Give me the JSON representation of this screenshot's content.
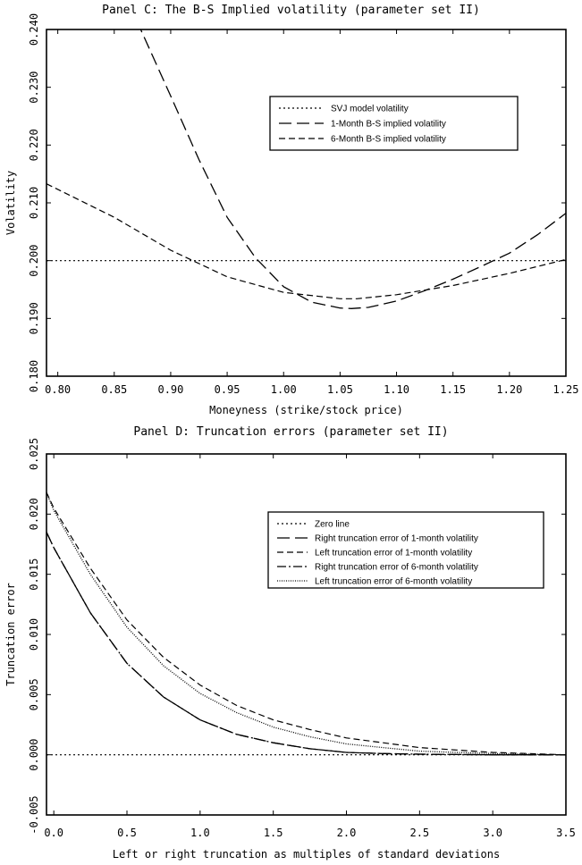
{
  "chart_data": [
    {
      "type": "line",
      "title": "Panel C: The B-S Implied volatility (parameter set II)",
      "xlabel": "Moneyness (strike/stock price)",
      "ylabel": "Volatility",
      "xlim": [
        0.79,
        1.25
      ],
      "ylim": [
        0.18,
        0.24
      ],
      "xticks": [
        0.8,
        0.85,
        0.9,
        0.95,
        1.0,
        1.05,
        1.1,
        1.15,
        1.2,
        1.25
      ],
      "xtick_labels": [
        "0.80",
        "0.85",
        "0.90",
        "0.95",
        "1.00",
        "1.05",
        "1.10",
        "1.15",
        "1.20",
        "1.25"
      ],
      "yticks": [
        0.18,
        0.19,
        0.2,
        0.21,
        0.22,
        0.23,
        0.24
      ],
      "ytick_labels": [
        "0.180",
        "0.190",
        "0.200",
        "0.210",
        "0.220",
        "0.230",
        "0.240"
      ],
      "legend_position": "top-right",
      "series": [
        {
          "name": "SVJ model volatility",
          "dash": "2,3",
          "width": 1.2,
          "x": [
            0.79,
            1.25
          ],
          "y": [
            0.2,
            0.2
          ]
        },
        {
          "name": "1-Month B-S implied volatility",
          "dash": "14,6",
          "width": 1.3,
          "x": [
            0.87,
            0.9,
            0.925,
            0.95,
            0.975,
            1.0,
            1.025,
            1.05,
            1.06,
            1.075,
            1.1,
            1.125,
            1.15,
            1.175,
            1.2,
            1.225,
            1.25
          ],
          "y": [
            0.2415,
            0.2285,
            0.2175,
            0.2075,
            0.2005,
            0.1955,
            0.1928,
            0.1918,
            0.1917,
            0.1919,
            0.193,
            0.1948,
            0.1968,
            0.199,
            0.2013,
            0.2045,
            0.2082
          ]
        },
        {
          "name": "6-Month B-S implied volatility",
          "dash": "7,4",
          "width": 1.2,
          "x": [
            0.79,
            0.85,
            0.9,
            0.95,
            1.0,
            1.05,
            1.065,
            1.1,
            1.15,
            1.2,
            1.25
          ],
          "y": [
            0.2133,
            0.2075,
            0.2018,
            0.1972,
            0.1945,
            0.1934,
            0.1934,
            0.1941,
            0.1957,
            0.1978,
            0.2002
          ]
        }
      ]
    },
    {
      "type": "line",
      "title": "Panel D: Truncation errors (parameter set II)",
      "xlabel": "Left or right truncation as multiples of standard deviations",
      "ylabel": "Truncation error",
      "xlim": [
        -0.05,
        3.5
      ],
      "ylim": [
        -0.005,
        0.025
      ],
      "xticks": [
        0.0,
        0.5,
        1.0,
        1.5,
        2.0,
        2.5,
        3.0,
        3.5
      ],
      "xtick_labels": [
        "0.0",
        "0.5",
        "1.0",
        "1.5",
        "2.0",
        "2.5",
        "3.0",
        "3.5"
      ],
      "yticks": [
        -0.005,
        0.0,
        0.005,
        0.01,
        0.015,
        0.02,
        0.025
      ],
      "ytick_labels": [
        "-0.005",
        "0.000",
        "0.005",
        "0.010",
        "0.015",
        "0.020",
        "0.025"
      ],
      "legend_position": "top-right",
      "series": [
        {
          "name": "Zero line",
          "dash": "2,3",
          "width": 1.2,
          "x": [
            -0.05,
            3.5
          ],
          "y": [
            0,
            0
          ]
        },
        {
          "name": "Right truncation error of 1-month volatility",
          "dash": "14,6",
          "width": 1.3,
          "x": [
            -0.05,
            0.0,
            0.25,
            0.5,
            0.75,
            1.0,
            1.25,
            1.5,
            1.75,
            2.0,
            2.25,
            2.5,
            3.0,
            3.5
          ],
          "y": [
            0.0185,
            0.0172,
            0.0118,
            0.0076,
            0.0048,
            0.0029,
            0.0017,
            0.001,
            0.0005,
            0.0002,
            0.0001,
            5e-05,
            0.0,
            0.0
          ]
        },
        {
          "name": "Left truncation error of 1-month volatility",
          "dash": "7,4",
          "width": 1.2,
          "x": [
            -0.05,
            0.0,
            0.25,
            0.5,
            0.75,
            1.0,
            1.25,
            1.5,
            1.75,
            2.0,
            2.25,
            2.5,
            2.75,
            3.0,
            3.25,
            3.5
          ],
          "y": [
            0.0218,
            0.0205,
            0.0155,
            0.0112,
            0.0081,
            0.0058,
            0.0041,
            0.0029,
            0.0021,
            0.0014,
            0.001,
            0.0006,
            0.0004,
            0.0002,
            0.0001,
            0.0
          ]
        },
        {
          "name": "Right truncation error of 6-month volatility",
          "dash": "10,3,2,3",
          "width": 1.3,
          "x": [
            -0.05,
            0.0,
            0.25,
            0.5,
            0.75,
            1.0,
            1.25,
            1.5,
            1.75,
            2.0,
            2.25,
            2.5,
            3.0,
            3.5
          ],
          "y": [
            0.0185,
            0.0172,
            0.0118,
            0.0076,
            0.0048,
            0.0029,
            0.0017,
            0.001,
            0.0005,
            0.0002,
            0.0001,
            5e-05,
            0.0,
            0.0
          ]
        },
        {
          "name": "Left truncation error of 6-month volatility",
          "dash": "1,1.5",
          "width": 1.3,
          "x": [
            -0.05,
            0.0,
            0.25,
            0.5,
            0.75,
            1.0,
            1.25,
            1.5,
            1.75,
            2.0,
            2.25,
            2.5,
            2.75,
            3.0,
            3.25,
            3.5
          ],
          "y": [
            0.0218,
            0.0203,
            0.015,
            0.0106,
            0.0074,
            0.0051,
            0.0035,
            0.0023,
            0.0015,
            0.0009,
            0.0006,
            0.0003,
            0.0002,
            0.0001,
            5e-05,
            0.0
          ]
        }
      ]
    }
  ]
}
